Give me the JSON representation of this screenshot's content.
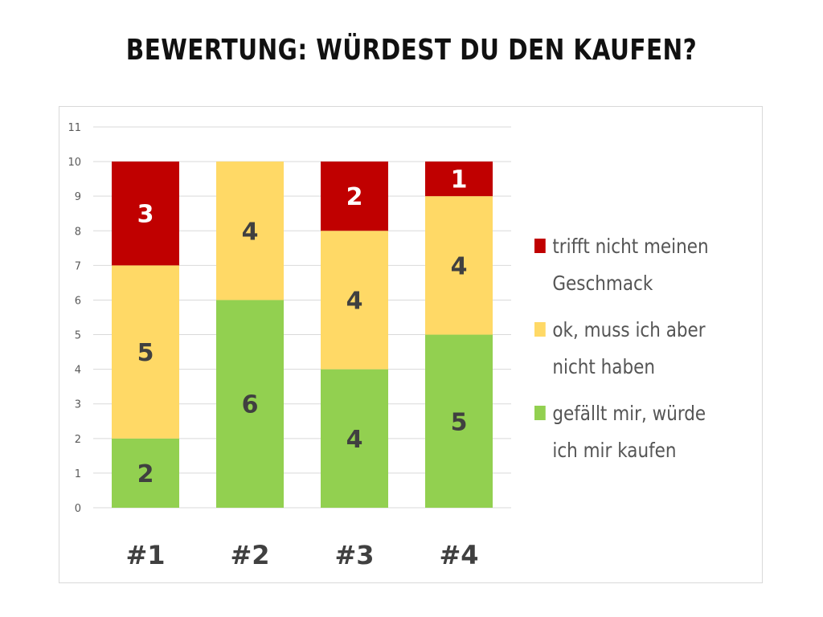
{
  "title": "BEWERTUNG: WÜRDEST DU DEN KAUFEN?",
  "chart_data": {
    "type": "bar",
    "stacked": true,
    "categories": [
      "#1",
      "#2",
      "#3",
      "#4"
    ],
    "series": [
      {
        "name": "gefällt mir, würde ich mir kaufen",
        "values": [
          2,
          6,
          4,
          5
        ],
        "color": "#92d050"
      },
      {
        "name": "ok, muss ich aber nicht haben",
        "values": [
          5,
          4,
          4,
          4
        ],
        "color": "#ffd966"
      },
      {
        "name": "trifft nicht meinen Geschmack",
        "values": [
          3,
          0,
          2,
          1
        ],
        "color": "#c00000"
      }
    ],
    "ylim": [
      0,
      11
    ],
    "yticks": [
      "0",
      "1",
      "2",
      "3",
      "4",
      "5",
      "6",
      "7",
      "8",
      "9",
      "10",
      "11"
    ],
    "grid": true,
    "legend_position": "right",
    "data_labels": true
  }
}
